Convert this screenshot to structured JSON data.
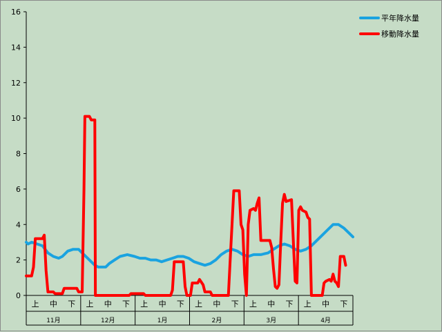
{
  "chart_data": {
    "type": "line",
    "title": "",
    "xlabel": "",
    "ylabel": "",
    "ylim": [
      0,
      16
    ],
    "yticks": [
      0,
      2,
      4,
      6,
      8,
      10,
      12,
      14,
      16
    ],
    "grid": "horizontal-off",
    "legend_position": "top-right",
    "months": [
      {
        "label": "11月",
        "dekads": [
          "上",
          "中",
          "下"
        ]
      },
      {
        "label": "12月",
        "dekads": [
          "上",
          "中",
          "下"
        ]
      },
      {
        "label": "1月",
        "dekads": [
          "上",
          "中",
          "下"
        ]
      },
      {
        "label": "2月",
        "dekads": [
          "上",
          "中",
          "下"
        ]
      },
      {
        "label": "3月",
        "dekads": [
          "上",
          "中",
          "下"
        ]
      },
      {
        "label": "4月",
        "dekads": [
          "上",
          "中",
          "下"
        ]
      }
    ],
    "x_range_days": [
      0,
      181
    ],
    "series": [
      {
        "name": "平年降水量",
        "color": "#1aa3e0",
        "points": [
          [
            0,
            3.0
          ],
          [
            1,
            2.9
          ],
          [
            3,
            3.0
          ],
          [
            6,
            2.9
          ],
          [
            9,
            2.8
          ],
          [
            12,
            2.4
          ],
          [
            15,
            2.2
          ],
          [
            18,
            2.1
          ],
          [
            20,
            2.2
          ],
          [
            23,
            2.5
          ],
          [
            26,
            2.6
          ],
          [
            29,
            2.6
          ],
          [
            31,
            2.4
          ],
          [
            34,
            2.1
          ],
          [
            36,
            1.9
          ],
          [
            38,
            1.7
          ],
          [
            40,
            1.6
          ],
          [
            44,
            1.6
          ],
          [
            46,
            1.8
          ],
          [
            49,
            2.0
          ],
          [
            52,
            2.2
          ],
          [
            56,
            2.3
          ],
          [
            60,
            2.2
          ],
          [
            63,
            2.1
          ],
          [
            66,
            2.1
          ],
          [
            69,
            2.0
          ],
          [
            72,
            2.0
          ],
          [
            75,
            1.9
          ],
          [
            78,
            2.0
          ],
          [
            81,
            2.1
          ],
          [
            84,
            2.2
          ],
          [
            87,
            2.2
          ],
          [
            90,
            2.1
          ],
          [
            93,
            1.9
          ],
          [
            96,
            1.8
          ],
          [
            99,
            1.7
          ],
          [
            102,
            1.8
          ],
          [
            105,
            2.0
          ],
          [
            108,
            2.3
          ],
          [
            111,
            2.5
          ],
          [
            114,
            2.6
          ],
          [
            117,
            2.5
          ],
          [
            120,
            2.3
          ],
          [
            123,
            2.2
          ],
          [
            126,
            2.3
          ],
          [
            130,
            2.3
          ],
          [
            134,
            2.4
          ],
          [
            137,
            2.6
          ],
          [
            140,
            2.8
          ],
          [
            143,
            2.9
          ],
          [
            146,
            2.8
          ],
          [
            149,
            2.6
          ],
          [
            152,
            2.5
          ],
          [
            155,
            2.6
          ],
          [
            158,
            2.8
          ],
          [
            161,
            3.1
          ],
          [
            164,
            3.4
          ],
          [
            167,
            3.7
          ],
          [
            170,
            4.0
          ],
          [
            173,
            4.0
          ],
          [
            176,
            3.8
          ],
          [
            179,
            3.5
          ],
          [
            181,
            3.3
          ]
        ]
      },
      {
        "name": "移動降水量",
        "color": "#ff0000",
        "points": [
          [
            0,
            1.1
          ],
          [
            3,
            1.1
          ],
          [
            4,
            1.6
          ],
          [
            5,
            3.2
          ],
          [
            9,
            3.2
          ],
          [
            10,
            3.4
          ],
          [
            11,
            1.4
          ],
          [
            12,
            0.2
          ],
          [
            15,
            0.2
          ],
          [
            16,
            0.1
          ],
          [
            20,
            0.1
          ],
          [
            21,
            0.4
          ],
          [
            28,
            0.4
          ],
          [
            29,
            0.2
          ],
          [
            31,
            0.2
          ],
          [
            32,
            6.0
          ],
          [
            32.5,
            10.1
          ],
          [
            35,
            10.1
          ],
          [
            36,
            9.9
          ],
          [
            38,
            9.9
          ],
          [
            38.3,
            0.0
          ],
          [
            57,
            0.0
          ],
          [
            58,
            0.1
          ],
          [
            65,
            0.1
          ],
          [
            66,
            0.0
          ],
          [
            80,
            0.0
          ],
          [
            81,
            0.3
          ],
          [
            82,
            1.9
          ],
          [
            87,
            1.9
          ],
          [
            88,
            0.5
          ],
          [
            89,
            0.0
          ],
          [
            91,
            0.0
          ],
          [
            92,
            0.7
          ],
          [
            95,
            0.7
          ],
          [
            96,
            0.9
          ],
          [
            98,
            0.6
          ],
          [
            99,
            0.2
          ],
          [
            102,
            0.2
          ],
          [
            103,
            0.0
          ],
          [
            112,
            0.0
          ],
          [
            113,
            2.0
          ],
          [
            115,
            5.9
          ],
          [
            118,
            5.9
          ],
          [
            119,
            4.0
          ],
          [
            120,
            3.7
          ],
          [
            121,
            1.2
          ],
          [
            122,
            0.0
          ],
          [
            123,
            4.0
          ],
          [
            124,
            4.8
          ],
          [
            126,
            4.9
          ],
          [
            127,
            4.8
          ],
          [
            128,
            5.2
          ],
          [
            129,
            5.5
          ],
          [
            130,
            3.1
          ],
          [
            135,
            3.1
          ],
          [
            136,
            2.7
          ],
          [
            137,
            1.5
          ],
          [
            138,
            0.5
          ],
          [
            139,
            0.4
          ],
          [
            140,
            0.6
          ],
          [
            141,
            3.0
          ],
          [
            142,
            5.2
          ],
          [
            143,
            5.7
          ],
          [
            144,
            5.3
          ],
          [
            147,
            5.4
          ],
          [
            148,
            3.0
          ],
          [
            149,
            0.8
          ],
          [
            150,
            0.7
          ],
          [
            151,
            4.8
          ],
          [
            152,
            5.0
          ],
          [
            153,
            4.8
          ],
          [
            155,
            4.7
          ],
          [
            156,
            4.4
          ],
          [
            157,
            4.3
          ],
          [
            158,
            0.0
          ],
          [
            164,
            0.0
          ],
          [
            165,
            0.7
          ],
          [
            166,
            0.8
          ],
          [
            168,
            0.9
          ],
          [
            169,
            0.8
          ],
          [
            170,
            1.2
          ],
          [
            171,
            0.8
          ],
          [
            172,
            0.7
          ],
          [
            173,
            0.5
          ],
          [
            174,
            2.2
          ],
          [
            176,
            2.2
          ],
          [
            177,
            1.7
          ]
        ]
      }
    ]
  }
}
